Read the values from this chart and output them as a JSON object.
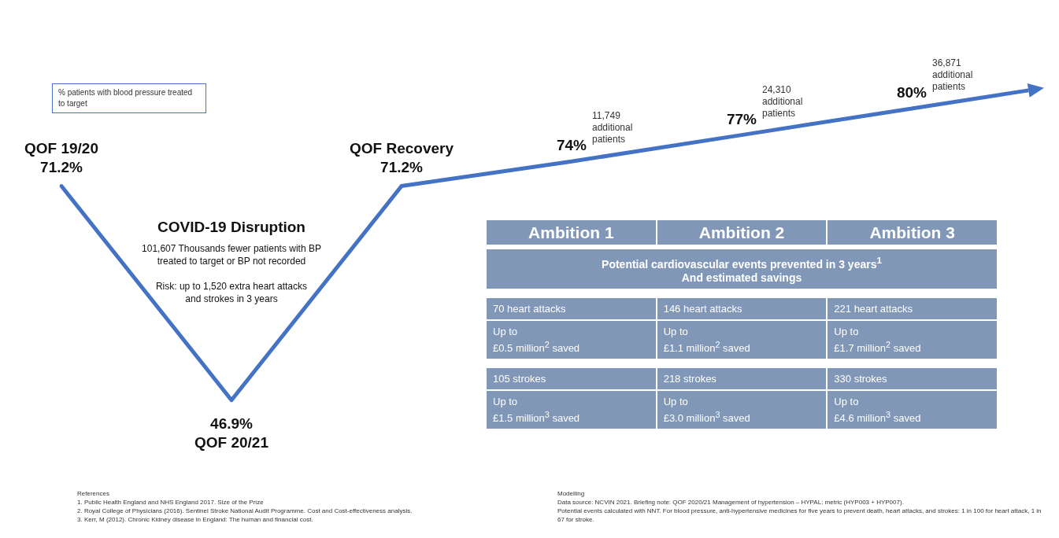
{
  "chart_data": {
    "type": "line",
    "categories": [
      "QOF 19/20",
      "QOF 20/21",
      "QOF Recovery",
      "Ambition 1",
      "Ambition 2",
      "Ambition 3"
    ],
    "values": [
      71.2,
      46.9,
      71.2,
      74,
      77,
      80
    ],
    "value_labels": [
      "71.2%",
      "46.9%",
      "71.2%",
      "74%",
      "77%",
      "80%"
    ],
    "color": "#4472c4",
    "marker": "none",
    "line_style": "solid",
    "tick_labels": false,
    "ylabel": "% patients with blood pressure treated to target",
    "annotations": [
      "COVID-19 Disruption",
      "101,607 Thousands fewer patients with BP treated to target or BP not recorded",
      "Risk: up to 1,520 extra heart attacks and strokes in 3 years",
      {
        "text": "11,749 additional patients",
        "x": "Ambition 1",
        "y": 74
      },
      {
        "text": "24,310 additional patients",
        "x": "Ambition 2",
        "y": 77
      },
      {
        "text": "36,871 additional patients",
        "x": "Ambition 3",
        "y": 80
      },
      "Potential cardiovascular events prevented in 3 years$^{1}$\nAnd estimated savings",
      "70 heart attacks",
      "146 heart attacks",
      "221 heart attacks",
      "Up to\n£0.5 million$^{2}$ saved",
      "Up to\n£1.1 million$^{2}$ saved",
      "Up to\n£1.7 million$^{2}$ saved",
      "105 strokes",
      "218 strokes",
      "330 strokes",
      "Up to\n£1.5 million$^{3}$ saved",
      "Up to\n£3.0 million$^{3}$ saved",
      "Up to\n£4.6 million$^{3}$ saved",
      "References\n1.   Public Health England and NHS England 2017. Size of the Prize\n2.   Royal College of Physicians (2016). Sentinel Stroke National Audit Programme. Cost and Cost-effectiveness analysis.\n3.   Kerr, M (2012). Chronic Kidney disease in England: The human and financial cost.",
      "Modelling\nData source: NCVIN 2021. Briefing note: QOF 2020/21 Management of hypertension – HYPAL: metric (HYP003 + HYP007).\nPotential events calculated with NNT. For blood pressure, anti-hypertensive medicines for five years to prevent death, heart attacks, and strokes: 1 in 100 for heart attack, 1 in 67 for stroke."
    ]
  }
}
